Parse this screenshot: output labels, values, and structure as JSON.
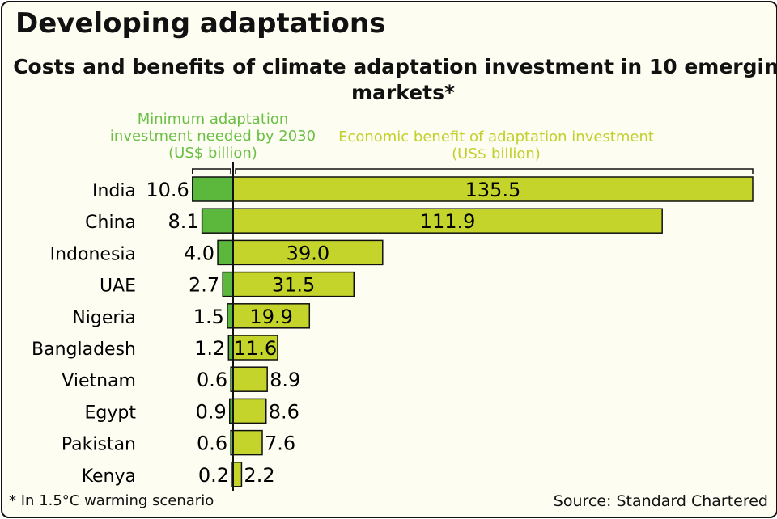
{
  "header": {
    "title": "Developing adaptations"
  },
  "chart_data": {
    "type": "bar",
    "title": "Costs and benefits of climate adaptation investment in 10 emerging markets*",
    "categories": [
      "India",
      "China",
      "Indonesia",
      "UAE",
      "Nigeria",
      "Bangladesh",
      "Vietnam",
      "Egypt",
      "Pakistan",
      "Kenya"
    ],
    "series": [
      {
        "name": "Minimum adaptation investment needed by 2030 (US$ billion)",
        "color": "#5cb83c",
        "values": [
          10.6,
          8.1,
          4.0,
          2.7,
          1.5,
          1.2,
          0.6,
          0.9,
          0.6,
          0.2
        ],
        "labels": [
          "10.6",
          "8.1",
          "4.0",
          "2.7",
          "1.5",
          "1.2",
          "0.6",
          "0.9",
          "0.6",
          "0.2"
        ]
      },
      {
        "name": "Economic benefit of adaptation investment (US$ billion)",
        "color": "#c4d42a",
        "values": [
          135.5,
          111.9,
          39.0,
          31.5,
          19.9,
          11.6,
          8.9,
          8.6,
          7.6,
          2.2
        ],
        "labels": [
          "135.5",
          "111.9",
          "39.0",
          "31.5",
          "19.9",
          "11.6",
          "8.9",
          "8.6",
          "7.6",
          "2.2"
        ]
      }
    ],
    "orientation": "horizontal-diverging",
    "grid": false
  },
  "footnote": "* In 1.5°C warming scenario",
  "source": "Source: Standard Chartered"
}
